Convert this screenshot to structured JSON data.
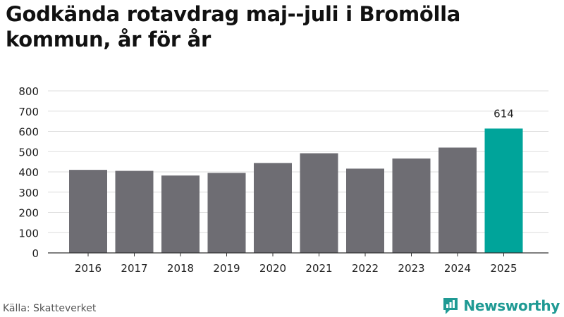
{
  "title": "Godkända rotavdrag maj--juli i Bromölla kommun, år för år",
  "source": "Källa: Skatteverket",
  "brand": {
    "name": "Newsworthy",
    "logo_icon": "newsworthy-logo-icon"
  },
  "colors": {
    "bar": "#6e6d73",
    "highlight": "#00a49a",
    "grid": "#dddddd",
    "axis": "#333333"
  },
  "chart_data": {
    "type": "bar",
    "categories": [
      "2016",
      "2017",
      "2018",
      "2019",
      "2020",
      "2021",
      "2022",
      "2023",
      "2024",
      "2025"
    ],
    "values": [
      410,
      405,
      382,
      395,
      444,
      492,
      416,
      466,
      520,
      614
    ],
    "ylim": [
      0,
      800
    ],
    "yticks": [
      "0",
      "100",
      "200",
      "300",
      "400",
      "500",
      "600",
      "700",
      "800"
    ],
    "highlight_index": 9,
    "data_labels": [
      {
        "index": 9,
        "text": "614"
      }
    ],
    "grid": true,
    "xlabel": "",
    "ylabel": ""
  }
}
